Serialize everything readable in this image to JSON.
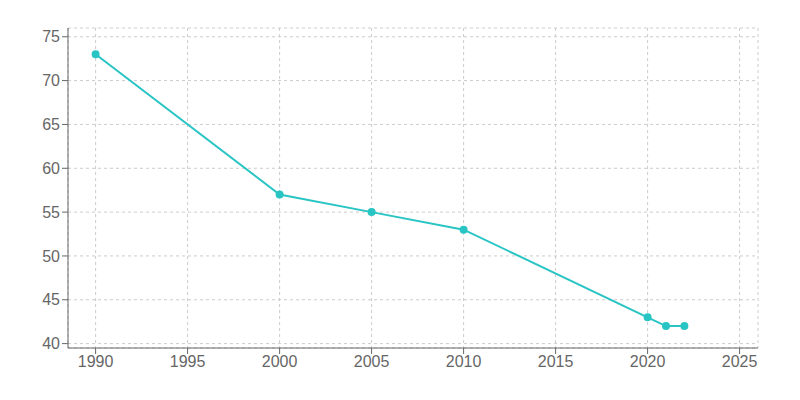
{
  "chart_data": {
    "type": "line",
    "x": [
      1990,
      2000,
      2005,
      2010,
      2020,
      2021,
      2022
    ],
    "values": [
      73,
      57,
      55,
      53,
      43,
      42,
      42
    ],
    "color": "#29c4c4",
    "marker": "o",
    "xlim": [
      1988.5,
      2026
    ],
    "ylim": [
      39.5,
      76
    ],
    "xticks": [
      1990,
      1995,
      2000,
      2005,
      2010,
      2015,
      2020,
      2025
    ],
    "yticks": [
      40,
      45,
      50,
      55,
      60,
      65,
      70,
      75
    ],
    "grid": true
  }
}
